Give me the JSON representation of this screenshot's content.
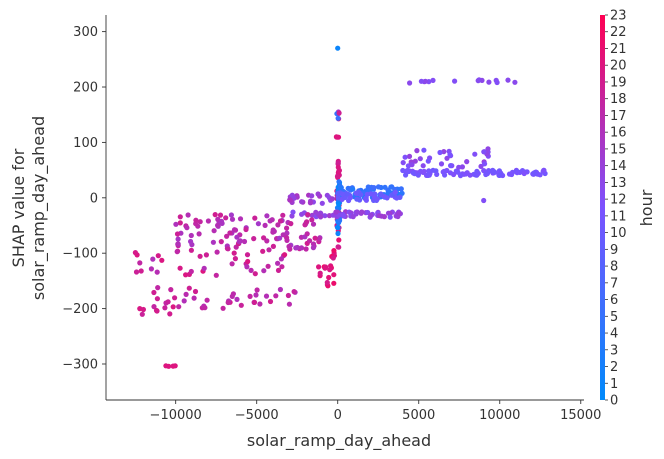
{
  "chart_data": {
    "type": "scatter",
    "title": "",
    "xlabel": "solar_ramp_day_ahead",
    "ylabel": [
      "SHAP value for",
      "solar_ramp_day_ahead"
    ],
    "xlim": [
      -14300,
      15200
    ],
    "ylim": [
      -365,
      330
    ],
    "xticks": [
      -10000,
      -5000,
      0,
      5000,
      10000,
      15000
    ],
    "xtick_labels": [
      "−10000",
      "−5000",
      "0",
      "5000",
      "10000",
      "15000"
    ],
    "yticks": [
      -300,
      -200,
      -100,
      0,
      100,
      200,
      300
    ],
    "ytick_labels": [
      "−300",
      "−200",
      "−100",
      "0",
      "100",
      "200",
      "300"
    ],
    "grid": false,
    "colorbar": {
      "label": "hour",
      "min": 0,
      "max": 23,
      "ticks": [
        "0",
        "1",
        "2",
        "3",
        "4",
        "5",
        "6",
        "7",
        "8",
        "9",
        "10",
        "11",
        "12",
        "13",
        "14",
        "15",
        "16",
        "17",
        "18",
        "19",
        "20",
        "21",
        "22",
        "23"
      ],
      "color_low": "#008afb",
      "color_mid": "#7c52ff",
      "color_high": "#ff0052"
    },
    "clusters": [
      {
        "x": [
          0,
          0
        ],
        "y": [
          270,
          270
        ],
        "hour": 1,
        "n": 1
      },
      {
        "x": [
          -150,
          150
        ],
        "y": [
          140,
          155
        ],
        "hour": [
          1,
          22
        ],
        "n": 6
      },
      {
        "x": [
          -100,
          100
        ],
        "y": [
          108,
          112
        ],
        "hour": 20,
        "n": 3
      },
      {
        "x": [
          -50,
          120
        ],
        "y": [
          -90,
          70
        ],
        "hour": [
          18,
          21
        ],
        "n": 30
      },
      {
        "x": [
          -30,
          120
        ],
        "y": [
          -65,
          30
        ],
        "hour": [
          0,
          5
        ],
        "n": 40
      },
      {
        "x": [
          0,
          4000
        ],
        "y": [
          0,
          20
        ],
        "hour": [
          3,
          6
        ],
        "n": 70
      },
      {
        "x": [
          0,
          4000
        ],
        "y": [
          -5,
          10
        ],
        "hour": [
          9,
          11
        ],
        "n": 40
      },
      {
        "x": [
          -3000,
          4000
        ],
        "y": [
          -35,
          -25
        ],
        "hour": [
          12,
          15
        ],
        "n": 60
      },
      {
        "x": [
          -3000,
          -200
        ],
        "y": [
          -10,
          10
        ],
        "hour": [
          13,
          16
        ],
        "n": 25
      },
      {
        "x": [
          4000,
          13000
        ],
        "y": [
          40,
          50
        ],
        "hour": [
          10,
          12
        ],
        "n": 90
      },
      {
        "x": [
          4000,
          9500
        ],
        "y": [
          55,
          90
        ],
        "hour": [
          11,
          14
        ],
        "n": 35
      },
      {
        "x": [
          4000,
          11500
        ],
        "y": [
          207,
          213
        ],
        "hour": [
          12,
          13
        ],
        "n": 15
      },
      {
        "x": [
          9000,
          9500
        ],
        "y": [
          -5,
          0
        ],
        "hour": 12,
        "n": 1
      },
      {
        "x": [
          -10000,
          -1000
        ],
        "y": [
          -95,
          -30
        ],
        "hour": [
          15,
          19
        ],
        "n": 110
      },
      {
        "x": [
          -12500,
          -3000
        ],
        "y": [
          -140,
          -95
        ],
        "hour": [
          16,
          20
        ],
        "n": 40
      },
      {
        "x": [
          -11500,
          -2500
        ],
        "y": [
          -200,
          -160
        ],
        "hour": [
          16,
          19
        ],
        "n": 40
      },
      {
        "x": [
          -12500,
          -10000
        ],
        "y": [
          -215,
          -195
        ],
        "hour": [
          18,
          20
        ],
        "n": 8
      },
      {
        "x": [
          -11000,
          -9800
        ],
        "y": [
          -305,
          -303
        ],
        "hour": 20,
        "n": 4
      },
      {
        "x": [
          -1200,
          -100
        ],
        "y": [
          -160,
          -90
        ],
        "hour": [
          19,
          22
        ],
        "n": 20
      }
    ]
  }
}
